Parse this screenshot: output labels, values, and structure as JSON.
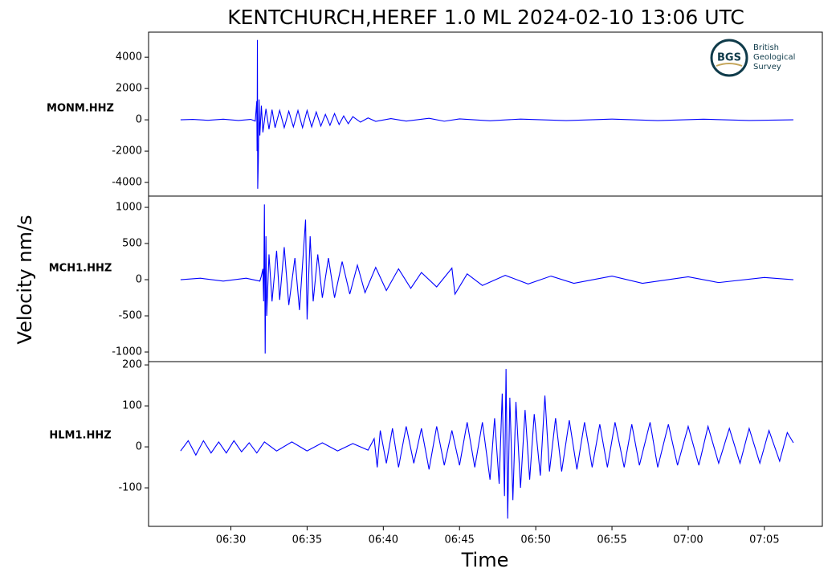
{
  "chart_data": [
    {
      "type": "line",
      "title": "KENTCHURCH,HEREF 1.0 ML   2024-02-10 13:06 UTC",
      "x": [
        26.7,
        27.5,
        28.5,
        29.5,
        30.5,
        31.3,
        31.6,
        31.7,
        31.72,
        31.74,
        31.76,
        31.8,
        31.85,
        31.9,
        32.0,
        32.1,
        32.3,
        32.5,
        32.7,
        32.9,
        33.2,
        33.5,
        33.8,
        34.1,
        34.4,
        34.7,
        35.0,
        35.3,
        35.6,
        35.9,
        36.2,
        36.5,
        36.8,
        37.1,
        37.4,
        37.7,
        38.0,
        38.5,
        39.0,
        39.5,
        40.5,
        41.5,
        43,
        44,
        45,
        47,
        49,
        52,
        55,
        58,
        61,
        64,
        66.9
      ],
      "series": [
        {
          "name": "MONM.HHZ",
          "color": "#0000ff",
          "values": [
            0,
            30,
            -30,
            40,
            -40,
            30,
            -80,
            1200,
            -2000,
            5100,
            -4400,
            -2700,
            1300,
            -1000,
            900,
            -800,
            700,
            -600,
            650,
            -500,
            600,
            -500,
            550,
            -450,
            600,
            -500,
            600,
            -450,
            500,
            -400,
            350,
            -350,
            400,
            -300,
            250,
            -250,
            200,
            -150,
            120,
            -100,
            80,
            -80,
            100,
            -90,
            60,
            -60,
            50,
            -50,
            50,
            -50,
            40,
            -40,
            0
          ]
        }
      ],
      "xlim": [
        24.6,
        68.8
      ],
      "ylim": [
        -4870,
        5600
      ],
      "yticks": [
        -4000,
        -2000,
        0,
        2000,
        4000
      ]
    },
    {
      "type": "line",
      "ylabel": "Velocity nm/s",
      "x": [
        26.7,
        28,
        29.5,
        31,
        31.9,
        32.0,
        32.1,
        32.15,
        32.2,
        32.25,
        32.3,
        32.35,
        32.5,
        32.7,
        33.0,
        33.2,
        33.5,
        33.8,
        34.2,
        34.5,
        34.9,
        35.0,
        35.2,
        35.4,
        35.7,
        36,
        36.4,
        36.8,
        37.3,
        37.8,
        38.3,
        38.8,
        39.5,
        40.2,
        41,
        41.8,
        42.5,
        43.5,
        44.5,
        44.7,
        45.5,
        46.5,
        48,
        49.5,
        51,
        52.5,
        55,
        57,
        60,
        62,
        65,
        66.9
      ],
      "series": [
        {
          "name": "MCH1.HHZ",
          "color": "#0000ff",
          "values": [
            0,
            20,
            -20,
            20,
            -20,
            50,
            150,
            -300,
            1040,
            -1020,
            600,
            -500,
            350,
            -300,
            400,
            -280,
            450,
            -350,
            300,
            -420,
            830,
            -550,
            600,
            -300,
            350,
            -250,
            300,
            -250,
            250,
            -200,
            200,
            -180,
            170,
            -150,
            150,
            -120,
            100,
            -100,
            160,
            -200,
            80,
            -80,
            60,
            -60,
            50,
            -50,
            50,
            -50,
            40,
            -40,
            30,
            0
          ]
        }
      ],
      "xlim": [
        24.6,
        68.8
      ],
      "ylim": [
        -1133,
        1156
      ],
      "yticks": [
        -1000,
        -500,
        0,
        500,
        1000
      ]
    },
    {
      "type": "line",
      "xlabel": "Time",
      "x": [
        26.7,
        27.2,
        27.7,
        28.2,
        28.7,
        29.2,
        29.7,
        30.2,
        30.7,
        31.2,
        31.7,
        32.2,
        33,
        34,
        35,
        36,
        37,
        38,
        39,
        39.4,
        39.6,
        39.8,
        40.2,
        40.6,
        41,
        41.5,
        42,
        42.5,
        43,
        43.5,
        44,
        44.5,
        45,
        45.5,
        46,
        46.5,
        47,
        47.3,
        47.6,
        47.8,
        47.95,
        48.05,
        48.16,
        48.3,
        48.5,
        48.7,
        49,
        49.3,
        49.6,
        49.9,
        50.3,
        50.6,
        50.9,
        51.3,
        51.7,
        52.2,
        52.7,
        53.2,
        53.7,
        54.2,
        54.7,
        55.2,
        55.8,
        56.3,
        56.8,
        57.5,
        58,
        58.7,
        59.3,
        60,
        60.7,
        61.3,
        62,
        62.7,
        63.4,
        64,
        64.7,
        65.3,
        66,
        66.5,
        66.9
      ],
      "series": [
        {
          "name": "HLM1.HHZ",
          "color": "#0000ff",
          "values": [
            -10,
            15,
            -20,
            15,
            -15,
            12,
            -15,
            15,
            -12,
            10,
            -15,
            12,
            -10,
            12,
            -10,
            10,
            -10,
            8,
            -8,
            20,
            -50,
            40,
            -40,
            45,
            -50,
            50,
            -40,
            45,
            -55,
            50,
            -45,
            40,
            -45,
            60,
            -50,
            60,
            -80,
            70,
            -90,
            130,
            -120,
            190,
            -175,
            120,
            -130,
            110,
            -100,
            90,
            -80,
            80,
            -70,
            125,
            -60,
            70,
            -60,
            65,
            -55,
            60,
            -50,
            55,
            -50,
            60,
            -50,
            55,
            -45,
            60,
            -50,
            55,
            -45,
            50,
            -45,
            50,
            -40,
            45,
            -40,
            45,
            -40,
            40,
            -35,
            35,
            10
          ]
        }
      ],
      "xlim": [
        24.6,
        68.8
      ],
      "ylim": [
        -194,
        208
      ],
      "yticks": [
        -100,
        0,
        100,
        200
      ],
      "xticks": [
        {
          "value": 30,
          "label": "06:30"
        },
        {
          "value": 35,
          "label": "06:35"
        },
        {
          "value": 40,
          "label": "06:40"
        },
        {
          "value": 45,
          "label": "06:45"
        },
        {
          "value": 50,
          "label": "06:50"
        },
        {
          "value": 55,
          "label": "06:55"
        },
        {
          "value": 60,
          "label": "07:00"
        },
        {
          "value": 65,
          "label": "07:05"
        }
      ]
    }
  ],
  "logo": {
    "abbr": "BGS",
    "lines": [
      "British",
      "Geological",
      "Survey"
    ]
  }
}
